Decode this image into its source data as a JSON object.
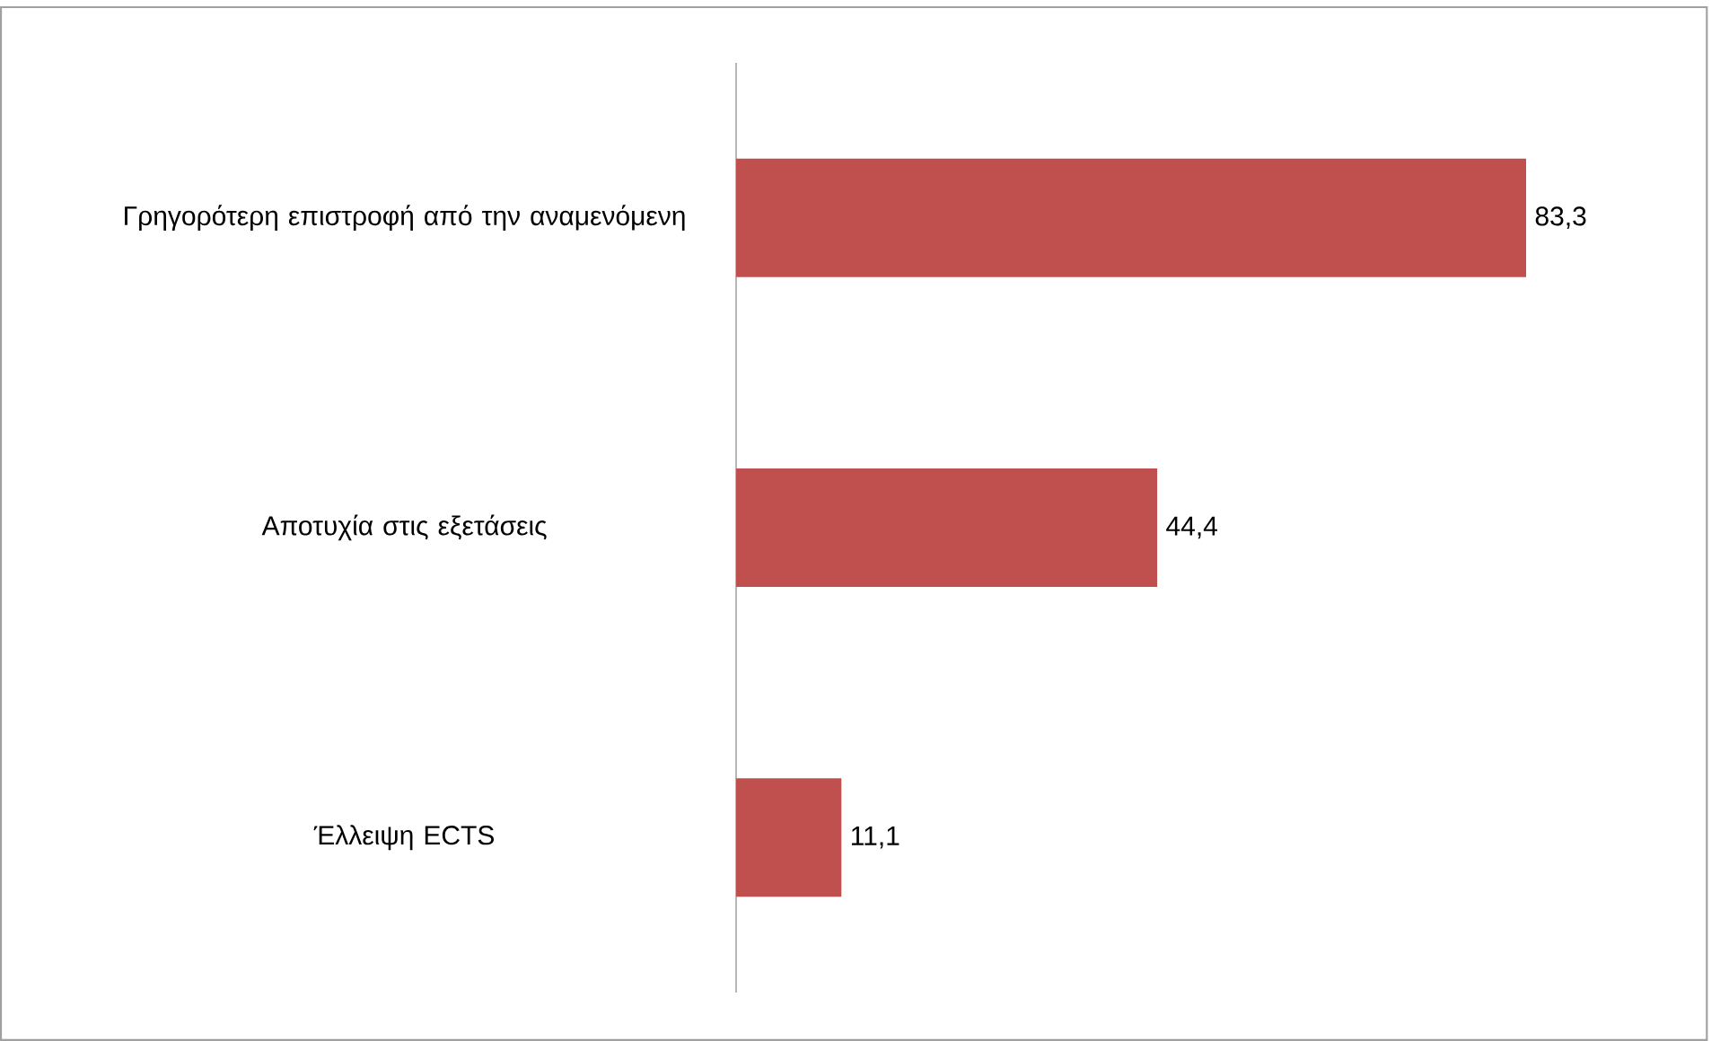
{
  "chart_data": {
    "type": "bar",
    "orientation": "horizontal",
    "categories": [
      "Γρηγορότερη επιστροφή από την αναμενόμενη",
      "Αποτυχία στις εξετάσεις",
      "Έλλειψη ECTS"
    ],
    "values": [
      83.3,
      44.4,
      11.1
    ],
    "value_labels": [
      "83,3",
      "44,4",
      "11,1"
    ],
    "color": "#c0504d"
  }
}
